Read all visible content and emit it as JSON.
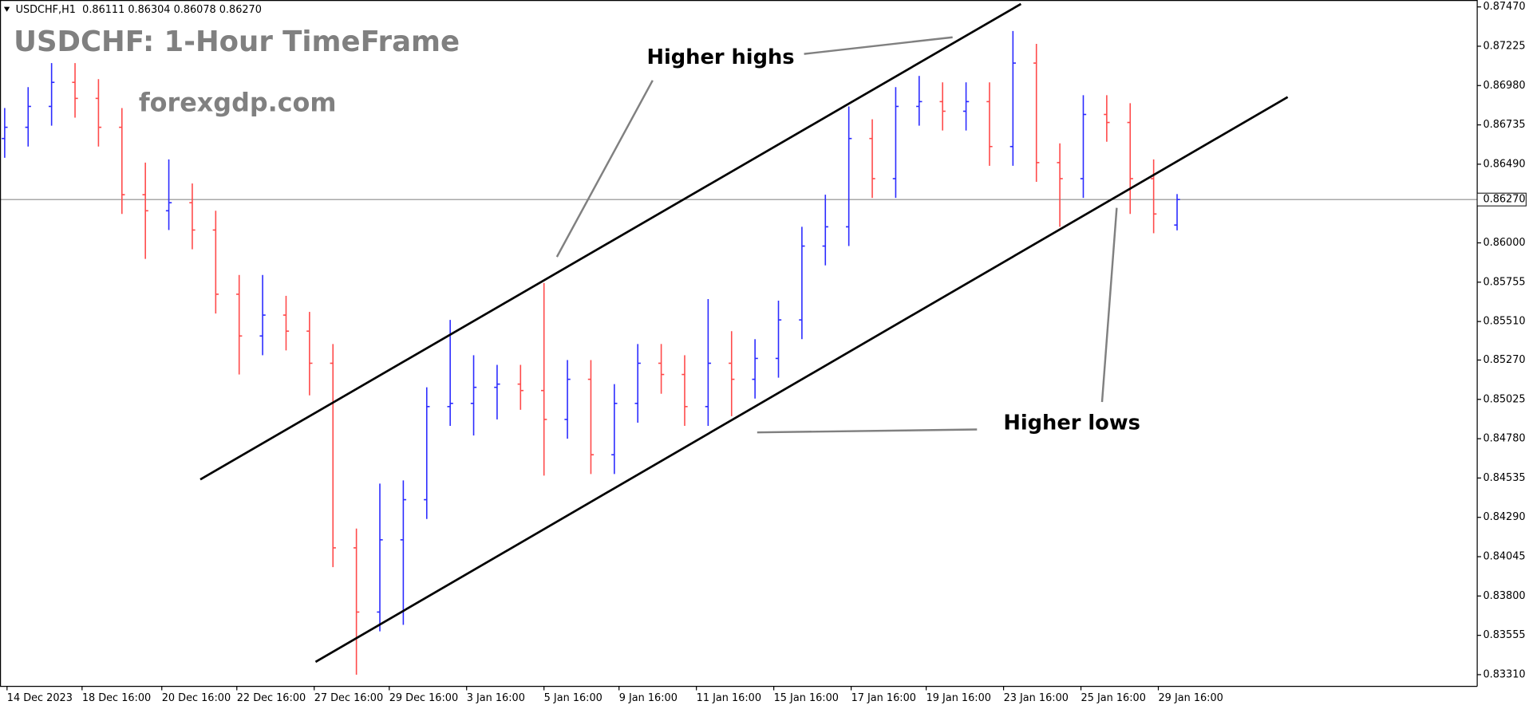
{
  "chart_data": {
    "type": "ohlc",
    "header": "USDCHF,H1  0.86111 0.86304 0.86078 0.86270",
    "title": "USDCHF: 1-Hour TimeFrame",
    "subtitle": "forexgdp.com",
    "annotations": [
      "Higher highs",
      "Higher lows"
    ],
    "up_color": "#2b2bff",
    "down_color": "#ff4a4a",
    "open": [
      0.8665,
      0.8672,
      0.8685,
      0.87,
      0.869,
      0.8672,
      0.863,
      0.862,
      0.8625,
      0.8608,
      0.8568,
      0.8542,
      0.8555,
      0.8545,
      0.8525,
      0.841,
      0.837,
      0.8415,
      0.844,
      0.8498,
      0.85,
      0.851,
      0.8512,
      0.8508,
      0.849,
      0.8515,
      0.8468,
      0.85,
      0.8525,
      0.8518,
      0.8498,
      0.8525,
      0.8515,
      0.8528,
      0.8552,
      0.8598,
      0.861,
      0.8665,
      0.864,
      0.8685,
      0.8688,
      0.8682,
      0.8688,
      0.866,
      0.8712,
      0.865,
      0.864,
      0.868,
      0.8675,
      0.864,
      0.86111
    ],
    "high": [
      0.8684,
      0.8697,
      0.8712,
      0.8712,
      0.8702,
      0.8684,
      0.865,
      0.8652,
      0.8637,
      0.862,
      0.858,
      0.858,
      0.8567,
      0.8557,
      0.8537,
      0.8422,
      0.845,
      0.8452,
      0.851,
      0.8552,
      0.853,
      0.8524,
      0.8524,
      0.8575,
      0.8527,
      0.8527,
      0.8512,
      0.8537,
      0.8537,
      0.853,
      0.8565,
      0.8545,
      0.854,
      0.8564,
      0.861,
      0.863,
      0.8685,
      0.8677,
      0.8697,
      0.8704,
      0.87,
      0.87,
      0.87,
      0.8732,
      0.8724,
      0.8662,
      0.8692,
      0.8692,
      0.8687,
      0.8652,
      0.86304
    ],
    "low": [
      0.8653,
      0.866,
      0.8673,
      0.8678,
      0.866,
      0.8618,
      0.859,
      0.8608,
      0.8596,
      0.8556,
      0.8518,
      0.853,
      0.8533,
      0.8505,
      0.8398,
      0.8331,
      0.8358,
      0.8362,
      0.8428,
      0.8486,
      0.848,
      0.849,
      0.8496,
      0.8455,
      0.8478,
      0.8456,
      0.8456,
      0.8488,
      0.8506,
      0.8486,
      0.8486,
      0.8492,
      0.8503,
      0.8516,
      0.854,
      0.8586,
      0.8598,
      0.8628,
      0.8628,
      0.8673,
      0.867,
      0.867,
      0.8648,
      0.8648,
      0.8638,
      0.861,
      0.8628,
      0.8663,
      0.8618,
      0.8606,
      0.86078
    ],
    "close": [
      0.8672,
      0.8685,
      0.87,
      0.869,
      0.8672,
      0.863,
      0.862,
      0.8625,
      0.8608,
      0.8568,
      0.8542,
      0.8555,
      0.8545,
      0.8525,
      0.841,
      0.837,
      0.8415,
      0.844,
      0.8498,
      0.85,
      0.851,
      0.8512,
      0.8508,
      0.849,
      0.8515,
      0.8468,
      0.85,
      0.8525,
      0.8518,
      0.8498,
      0.8525,
      0.8515,
      0.8528,
      0.8552,
      0.8598,
      0.861,
      0.8665,
      0.864,
      0.8685,
      0.8688,
      0.8682,
      0.8688,
      0.866,
      0.8712,
      0.865,
      0.864,
      0.868,
      0.8675,
      0.864,
      0.8618,
      0.8627
    ],
    "ylim": [
      0.83237,
      0.87513
    ],
    "yticks": [
      {
        "value": 0.8747,
        "label": "0.87470"
      },
      {
        "value": 0.87225,
        "label": "0.87225"
      },
      {
        "value": 0.8698,
        "label": "0.86980"
      },
      {
        "value": 0.86735,
        "label": "0.86735"
      },
      {
        "value": 0.8649,
        "label": "0.86490"
      },
      {
        "value": 0.86245,
        "label": "0.86245"
      },
      {
        "value": 0.86,
        "label": "0.86000"
      },
      {
        "value": 0.85755,
        "label": "0.85755"
      },
      {
        "value": 0.8551,
        "label": "0.85510"
      },
      {
        "value": 0.8527,
        "label": "0.85270"
      },
      {
        "value": 0.85025,
        "label": "0.85025"
      },
      {
        "value": 0.8478,
        "label": "0.84780"
      },
      {
        "value": 0.84535,
        "label": "0.84535"
      },
      {
        "value": 0.8429,
        "label": "0.84290"
      },
      {
        "value": 0.84045,
        "label": "0.84045"
      },
      {
        "value": 0.838,
        "label": "0.83800"
      },
      {
        "value": 0.83555,
        "label": "0.83555"
      },
      {
        "value": 0.8331,
        "label": "0.83310"
      }
    ],
    "current_price": {
      "value": 0.8627,
      "label": "0.86270"
    },
    "xlim": [
      -0.2,
      62.8
    ],
    "xticks": [
      {
        "value": 0.1,
        "label": "14 Dec 2023"
      },
      {
        "value": 3.3,
        "label": "18 Dec 16:00"
      },
      {
        "value": 6.7,
        "label": "20 Dec 16:00"
      },
      {
        "value": 9.9,
        "label": "22 Dec 16:00"
      },
      {
        "value": 13.2,
        "label": "27 Dec 16:00"
      },
      {
        "value": 16.4,
        "label": "29 Dec 16:00"
      },
      {
        "value": 19.7,
        "label": "3 Jan 16:00"
      },
      {
        "value": 23,
        "label": "5 Jan 16:00"
      },
      {
        "value": 26.2,
        "label": "9 Jan 16:00"
      },
      {
        "value": 29.5,
        "label": "11 Jan 16:00"
      },
      {
        "value": 32.8,
        "label": "15 Jan 16:00"
      },
      {
        "value": 36.1,
        "label": "17 Jan 16:00"
      },
      {
        "value": 39.3,
        "label": "19 Jan 16:00"
      },
      {
        "value": 42.6,
        "label": "23 Jan 16:00"
      },
      {
        "value": 45.9,
        "label": "25 Jan 16:00"
      },
      {
        "value": 49.2,
        "label": "29 Jan 16:00"
      }
    ]
  }
}
